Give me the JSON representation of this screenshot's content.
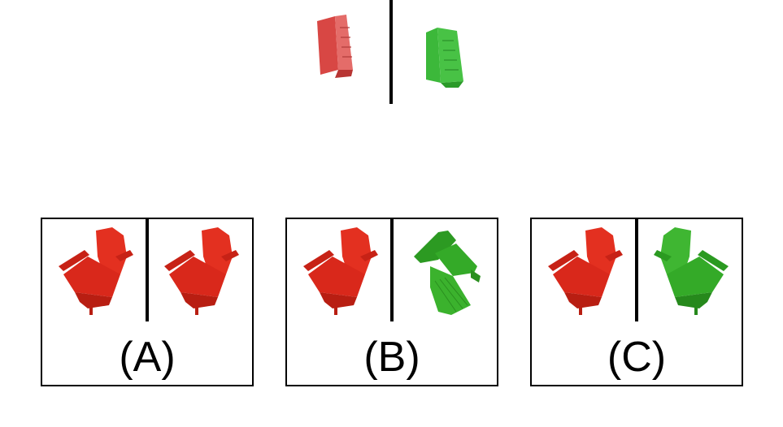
{
  "reference": {
    "left_color": "#d93a37",
    "right_color": "#2fb52d"
  },
  "options": [
    {
      "label": "(A)",
      "left_color": "#e0251a",
      "right_color": "#e0251a",
      "right_orientation": "same"
    },
    {
      "label": "(B)",
      "left_color": "#e0251a",
      "right_color": "#2fae23",
      "right_orientation": "rotated"
    },
    {
      "label": "(C)",
      "left_color": "#e0251a",
      "right_color": "#2fae23",
      "right_orientation": "mirrored"
    }
  ]
}
